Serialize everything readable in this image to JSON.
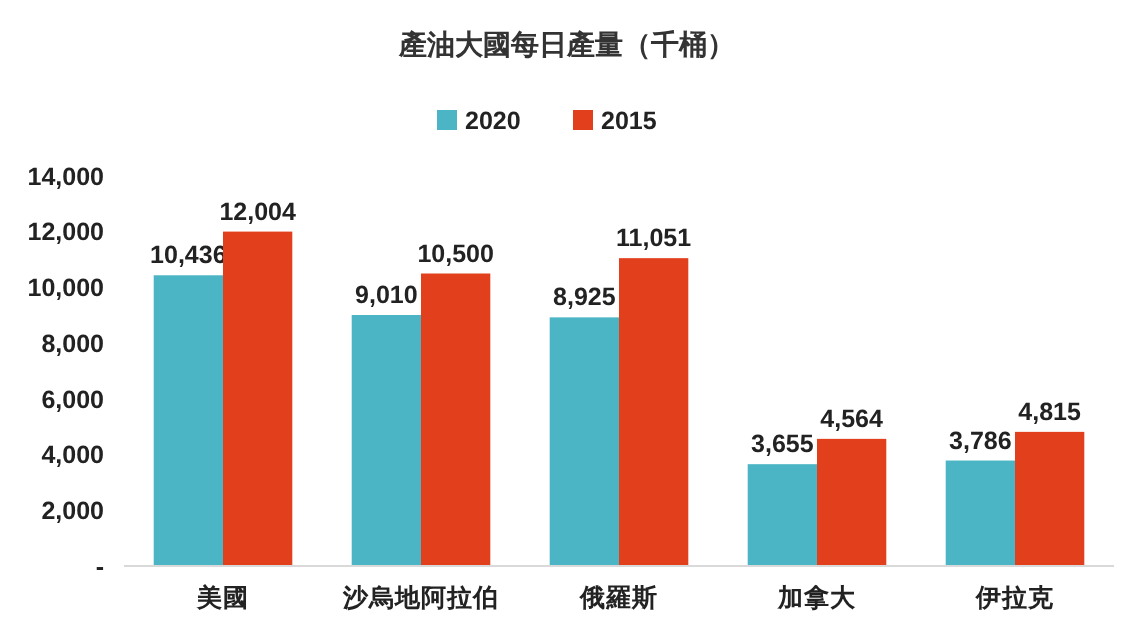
{
  "chart_data": {
    "type": "bar",
    "title": "產油大國每日產量（千桶）",
    "categories": [
      "美國",
      "沙烏地阿拉伯",
      "俄羅斯",
      "加拿大",
      "伊拉克"
    ],
    "series": [
      {
        "name": "2020",
        "color": "#4bb5c5",
        "values": [
          10436,
          9010,
          8925,
          3655,
          3786
        ],
        "value_labels": [
          "10,436",
          "9,010",
          "8,925",
          "3,655",
          "3,786"
        ]
      },
      {
        "name": "2015",
        "color": "#e2401c",
        "values": [
          12004,
          10500,
          11051,
          4564,
          4815
        ],
        "value_labels": [
          "12,004",
          "10,500",
          "11,051",
          "4,564",
          "4,815"
        ]
      }
    ],
    "ylim": [
      0,
      14000
    ],
    "yticks": [
      {
        "value": 0,
        "label": "-"
      },
      {
        "value": 2000,
        "label": "2,000"
      },
      {
        "value": 4000,
        "label": "4,000"
      },
      {
        "value": 6000,
        "label": "6,000"
      },
      {
        "value": 8000,
        "label": "8,000"
      },
      {
        "value": 10000,
        "label": "10,000"
      },
      {
        "value": 12000,
        "label": "12,000"
      },
      {
        "value": 14000,
        "label": "14,000"
      }
    ],
    "legend": "top",
    "grid": false
  }
}
